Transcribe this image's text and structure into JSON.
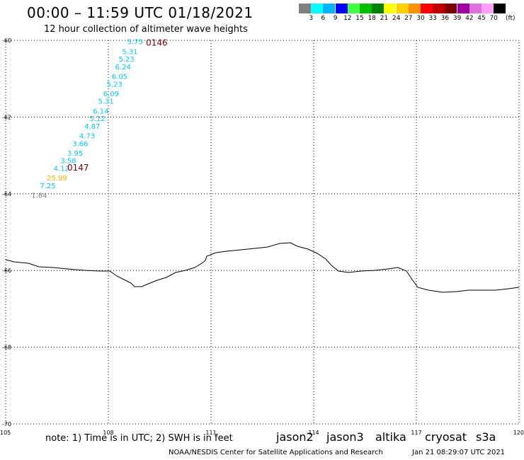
{
  "header": {
    "title": "00:00 – 11:59 UTC 01/18/2021",
    "subtitle": "12 hour collection of altimeter wave heights"
  },
  "legend": {
    "colors": [
      "#808080",
      "#00ffff",
      "#00b4ff",
      "#0000ff",
      "#40ff40",
      "#00c000",
      "#008000",
      "#ffff00",
      "#ffd000",
      "#ff9000",
      "#ff0000",
      "#c00000",
      "#800000",
      "#a000a0",
      "#e070e0",
      "#ffa0ff",
      "#000000"
    ],
    "labels": [
      "3",
      "6",
      "9",
      "12",
      "15",
      "18",
      "21",
      "24",
      "27",
      "30",
      "33",
      "36",
      "39",
      "42",
      "45",
      "70"
    ],
    "unit": "(ft)"
  },
  "map": {
    "lat_ticks": [
      "-60",
      "-62",
      "-64",
      "-66",
      "-68",
      "-70"
    ],
    "lon_ticks": [
      "105",
      "108",
      "111",
      "114",
      "117",
      "120"
    ]
  },
  "passes": [
    {
      "id": "0146",
      "color": "#7a0000"
    },
    {
      "id": "0147",
      "color": "#7a0000"
    }
  ],
  "observations": [
    {
      "value": "5.75",
      "color": "#00c8ff",
      "lon": 108.55,
      "lat": -60.05
    },
    {
      "value": "5.31",
      "color": "#00c8ff",
      "lon": 108.4,
      "lat": -60.3
    },
    {
      "value": "5.23",
      "color": "#00c8ff",
      "lon": 108.3,
      "lat": -60.5
    },
    {
      "value": "6.24",
      "color": "#00c8ff",
      "lon": 108.2,
      "lat": -60.7
    },
    {
      "value": "6.05",
      "color": "#00c8ff",
      "lon": 108.1,
      "lat": -60.95
    },
    {
      "value": "5.23",
      "color": "#00c8ff",
      "lon": 107.95,
      "lat": -61.15
    },
    {
      "value": "6.09",
      "color": "#00c8ff",
      "lon": 107.85,
      "lat": -61.4
    },
    {
      "value": "5.31",
      "color": "#00c8ff",
      "lon": 107.7,
      "lat": -61.6
    },
    {
      "value": "6.14",
      "color": "#00c8ff",
      "lon": 107.55,
      "lat": -61.85
    },
    {
      "value": "5.12",
      "color": "#00c8ff",
      "lon": 107.45,
      "lat": -62.05
    },
    {
      "value": "4.87",
      "color": "#00c8ff",
      "lon": 107.3,
      "lat": -62.25
    },
    {
      "value": "4.73",
      "color": "#00c8ff",
      "lon": 107.15,
      "lat": -62.5
    },
    {
      "value": "3.66",
      "color": "#00c8ff",
      "lon": 106.95,
      "lat": -62.7
    },
    {
      "value": "3.95",
      "color": "#00c8ff",
      "lon": 106.8,
      "lat": -62.95
    },
    {
      "value": "3.58",
      "color": "#00c8ff",
      "lon": 106.6,
      "lat": -63.15
    },
    {
      "value": "4.12",
      "color": "#00c8ff",
      "lon": 106.4,
      "lat": -63.35
    },
    {
      "value": "25.99",
      "color": "#ffb000",
      "lon": 106.2,
      "lat": -63.6
    },
    {
      "value": "7.25",
      "color": "#00c8ff",
      "lon": 106.0,
      "lat": -63.8
    },
    {
      "value": "1.84",
      "color": "#808080",
      "lon": 105.75,
      "lat": -64.05
    }
  ],
  "footer": {
    "note": "note:  1) Time is in UTC;  2) SWH is in feet",
    "satellites": [
      {
        "name": "jason2",
        "color": "#0000ff"
      },
      {
        "name": "jason3",
        "color": "#008000"
      },
      {
        "name": "altika",
        "color": "#ff9000"
      },
      {
        "name": "cryosat",
        "color": "#ff0000"
      },
      {
        "name": "s3a",
        "color": "#c00000"
      }
    ],
    "credit": "NOAA/NESDIS Center for Satellite Applications and Research",
    "timestamp": "Jan 21 08:29:07 UTC 2021"
  }
}
